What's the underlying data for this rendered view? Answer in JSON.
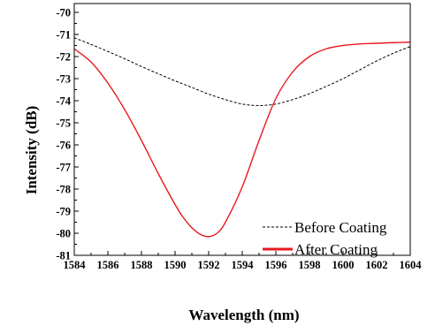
{
  "chart_data": {
    "type": "line",
    "title": "",
    "xlabel": "Wavelength (nm)",
    "ylabel": "Intensity (dB)",
    "xlim": [
      1584,
      1604
    ],
    "ylim": [
      -81,
      -69.6
    ],
    "xticks": [
      1584,
      1586,
      1588,
      1590,
      1592,
      1594,
      1596,
      1598,
      1600,
      1602,
      1604
    ],
    "yticks": [
      -70,
      -71,
      -72,
      -73,
      -74,
      -75,
      -76,
      -77,
      -78,
      -79,
      -80,
      -81
    ],
    "grid": false,
    "legend_position": "bottom-right",
    "series": [
      {
        "name": "Before Coating",
        "style": "dashed",
        "color": "#000000",
        "x": [
          1584,
          1585,
          1586,
          1587,
          1588,
          1589,
          1590,
          1591,
          1592,
          1593,
          1594,
          1595,
          1596,
          1597,
          1598,
          1599,
          1600,
          1601,
          1602,
          1603,
          1604
        ],
        "y": [
          -71.15,
          -71.45,
          -71.77,
          -72.1,
          -72.45,
          -72.78,
          -73.1,
          -73.4,
          -73.7,
          -73.95,
          -74.15,
          -74.22,
          -74.15,
          -73.95,
          -73.68,
          -73.35,
          -73.0,
          -72.6,
          -72.2,
          -71.85,
          -71.55
        ]
      },
      {
        "name": "After Coating",
        "style": "solid",
        "color": "#e8191f",
        "x": [
          1584,
          1585,
          1586,
          1587,
          1588,
          1589,
          1590,
          1590.5,
          1591,
          1591.5,
          1592,
          1592.5,
          1593,
          1594,
          1595,
          1596,
          1597,
          1598,
          1599,
          1600,
          1601,
          1602,
          1603,
          1604
        ],
        "y": [
          -71.65,
          -72.25,
          -73.2,
          -74.4,
          -75.8,
          -77.3,
          -78.7,
          -79.3,
          -79.75,
          -80.05,
          -80.15,
          -80.0,
          -79.5,
          -77.9,
          -75.8,
          -73.9,
          -72.7,
          -72.0,
          -71.65,
          -71.5,
          -71.43,
          -71.4,
          -71.37,
          -71.35
        ]
      }
    ]
  },
  "legend": {
    "before_label": "Before Coating",
    "after_label": "After Coating"
  }
}
